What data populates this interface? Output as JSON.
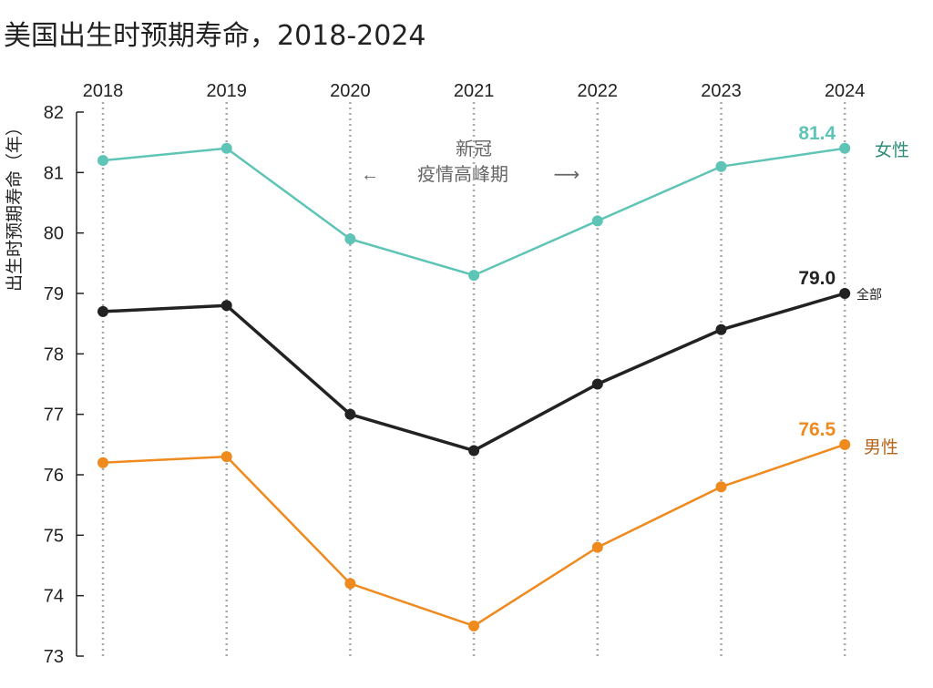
{
  "chart_data": {
    "type": "line",
    "title": "美国出生时预期寿命，2018-2024",
    "xlabel": "",
    "ylabel": "出生时预期寿命（年）",
    "x": [
      "2018",
      "2019",
      "2020",
      "2021",
      "2022",
      "2023",
      "2024"
    ],
    "ylim": [
      73,
      82
    ],
    "yticks": [
      "73",
      "74",
      "75",
      "76",
      "77",
      "78",
      "79",
      "80",
      "81",
      "82"
    ],
    "grid": "vertical dotted lines at each year",
    "series": [
      {
        "name": "女性",
        "color": "#5ec4b6",
        "label_color": "#2e8b7a",
        "end_label": "81.4",
        "values": [
          81.2,
          81.4,
          79.9,
          79.3,
          80.2,
          81.1,
          81.4
        ]
      },
      {
        "name": "全部",
        "color": "#222222",
        "label_color": "#222222",
        "end_label": "79.0",
        "values": [
          78.7,
          78.8,
          77.0,
          76.4,
          77.5,
          78.4,
          79.0
        ]
      },
      {
        "name": "男性",
        "color": "#ef8a1f",
        "label_color": "#b5651d",
        "end_label": "76.5",
        "values": [
          76.2,
          76.3,
          74.2,
          73.5,
          74.8,
          75.8,
          76.5
        ]
      }
    ],
    "annotation": {
      "line1": "新冠",
      "line2": "疫情高峰期",
      "arrow_left": "←",
      "arrow_right": "⟶"
    }
  }
}
